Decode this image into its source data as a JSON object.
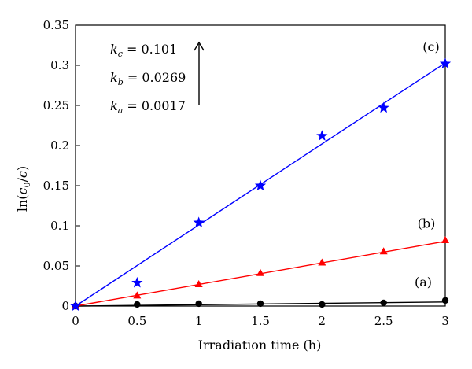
{
  "chart_data": {
    "type": "scatter",
    "title": "",
    "xlabel": "Irradiation time (h)",
    "ylabel": "ln(c0/c)",
    "xlim": [
      0,
      3
    ],
    "ylim": [
      0,
      0.35
    ],
    "grid": false,
    "x_ticks": [
      "0",
      "0.5",
      "1",
      "1.5",
      "2",
      "2.5",
      "3"
    ],
    "y_ticks": [
      "0",
      "0.05",
      "0.1",
      "0.15",
      "0.2",
      "0.25",
      "0.3",
      "0.35"
    ],
    "series": [
      {
        "tag": "(a)",
        "color": "#000000",
        "marker": "circle",
        "x": [
          0,
          0.5,
          1,
          1.5,
          2,
          2.5,
          3
        ],
        "y": [
          0,
          0.002,
          0.003,
          0.003,
          0.002,
          0.004,
          0.007
        ],
        "fit_slope": 0.0017
      },
      {
        "tag": "(b)",
        "color": "#ff0000",
        "marker": "triangle",
        "x": [
          0,
          0.5,
          1,
          1.5,
          2,
          2.5,
          3
        ],
        "y": [
          0,
          0.013,
          0.027,
          0.041,
          0.054,
          0.068,
          0.082
        ],
        "fit_slope": 0.0269
      },
      {
        "tag": "(c)",
        "color": "#0000ff",
        "marker": "star",
        "x": [
          0,
          0.5,
          1,
          1.5,
          2,
          2.5,
          3
        ],
        "y": [
          0,
          0.029,
          0.104,
          0.15,
          0.212,
          0.247,
          0.302
        ],
        "fit_slope": 0.101
      }
    ],
    "annotations": {
      "k_values": [
        {
          "symbol": "k",
          "subscript": "c",
          "value": "= 0.101"
        },
        {
          "symbol": "k",
          "subscript": "b",
          "value": "= 0.0269"
        },
        {
          "symbol": "k",
          "subscript": "a",
          "value": "= 0.0017"
        }
      ],
      "arrow": "up"
    }
  }
}
